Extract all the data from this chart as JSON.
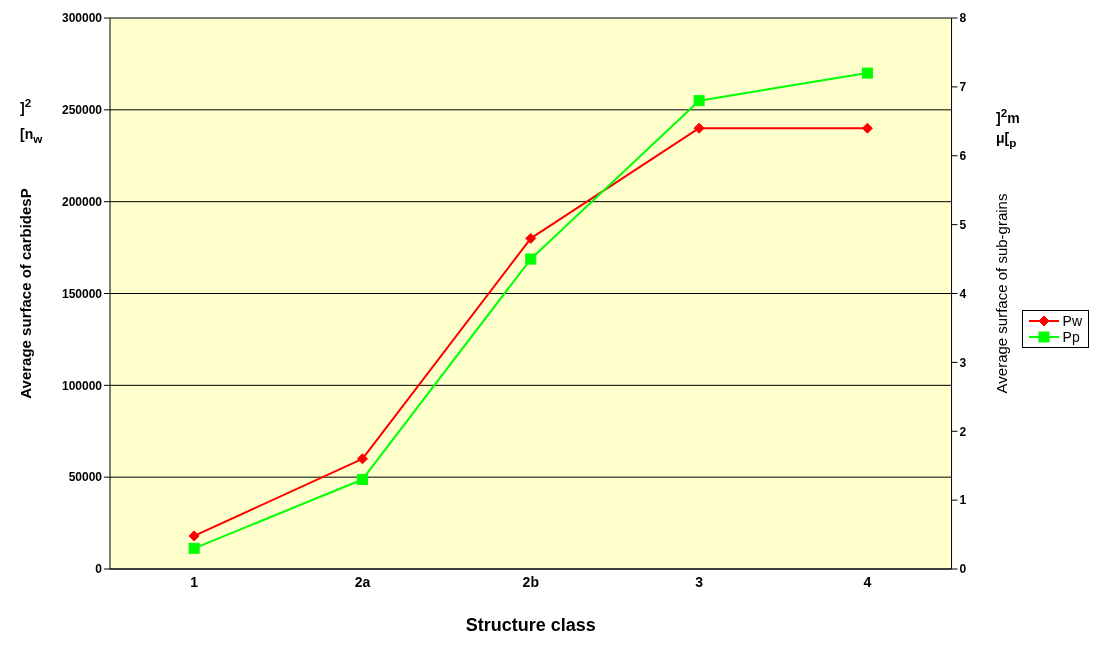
{
  "chart_data": {
    "type": "line",
    "xlabel": "Structure class",
    "ylabel": "Average surface of carbidesP",
    "y2label": "Average surface of sub-grains",
    "categories": [
      "1",
      "2a",
      "2b",
      "3",
      "4"
    ],
    "series": [
      {
        "name": "Pw",
        "color": "#ff0000",
        "marker": "diamond",
        "values": [
          18000,
          60000,
          180000,
          240000,
          240000
        ]
      },
      {
        "name": "Pp",
        "color": "#00ff00",
        "marker": "square",
        "axis": "y2",
        "values": [
          0.3,
          1.3,
          4.5,
          6.8,
          7.2
        ]
      }
    ],
    "ylim": [
      0,
      300000
    ],
    "yticks": [
      0,
      50000,
      100000,
      150000,
      200000,
      250000,
      300000
    ],
    "y2lim": [
      0,
      8
    ],
    "y2ticks": [
      0,
      1,
      2,
      3,
      4,
      5,
      6,
      7,
      8
    ],
    "grid": "y",
    "legend": "right",
    "annotations": [
      "]$^{2}$",
      "[n$_{w}$",
      "]$^{2}$m",
      "μ[$_{p}$"
    ]
  }
}
